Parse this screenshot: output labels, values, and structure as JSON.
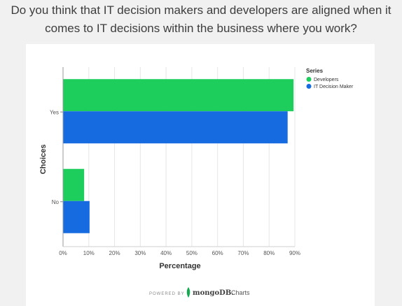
{
  "question": {
    "line1": "Do you think that IT decision makers and developers are aligned when it",
    "line2": "comes to IT decisions within the business where you work?"
  },
  "chart_data": {
    "type": "bar",
    "orientation": "horizontal",
    "categories": [
      "Yes",
      "No"
    ],
    "series": [
      {
        "name": "Developers",
        "color": "#1ece5c",
        "values": [
          89.5,
          8.2
        ]
      },
      {
        "name": "IT Decision Maker",
        "color": "#176be1",
        "values": [
          87.2,
          10.3
        ]
      }
    ],
    "xlabel": "Percentage",
    "ylabel": "Choices",
    "xlim": [
      0,
      90
    ],
    "xticks": [
      "0%",
      "10%",
      "20%",
      "30%",
      "40%",
      "50%",
      "60%",
      "70%",
      "80%",
      "90%"
    ],
    "grid": true,
    "legend": {
      "title": "Series",
      "position": "top-right"
    }
  },
  "branding": {
    "powered_by": "POWERED BY",
    "product": "mongoDB.",
    "product_suffix": "Charts"
  }
}
